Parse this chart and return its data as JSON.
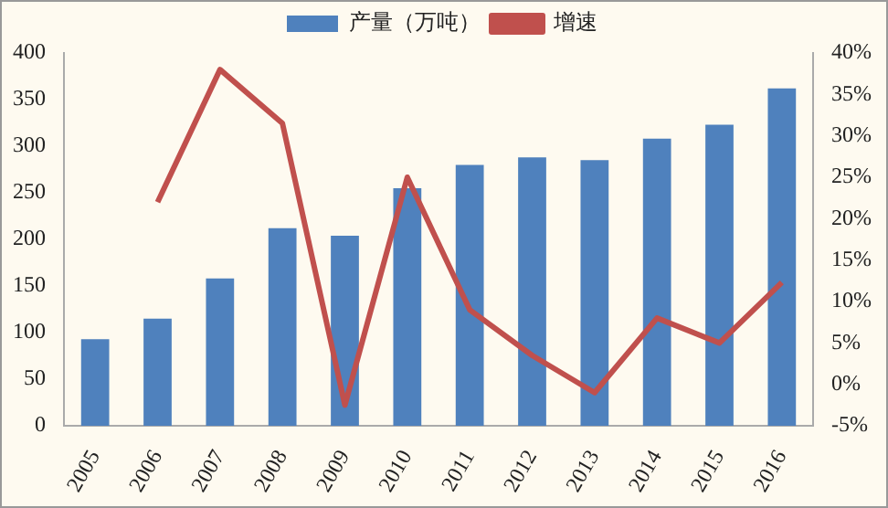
{
  "chart_data": {
    "type": "bar",
    "categories": [
      "2005",
      "2006",
      "2007",
      "2008",
      "2009",
      "2010",
      "2011",
      "2012",
      "2013",
      "2014",
      "2015",
      "2016"
    ],
    "series": [
      {
        "name": "产量（万吨）",
        "color": "#4f81bd",
        "values": [
          93,
          115,
          158,
          212,
          204,
          255,
          280,
          288,
          285,
          308,
          323,
          362
        ]
      },
      {
        "name": "增速",
        "type": "line",
        "axis": "y2",
        "color": "#c0504d",
        "values": [
          null,
          22,
          38,
          31.5,
          -2.5,
          25,
          9,
          3.5,
          -1,
          8,
          5,
          12.3
        ]
      }
    ],
    "ylim": [
      0,
      400
    ],
    "yticks": [
      0,
      50,
      100,
      150,
      200,
      250,
      300,
      350,
      400
    ],
    "y2lim": [
      -5,
      40
    ],
    "y2ticks": [
      {
        "value": -5,
        "label": "-5%"
      },
      {
        "value": 0,
        "label": "0%"
      },
      {
        "value": 5,
        "label": "5%"
      },
      {
        "value": 10,
        "label": "10%"
      },
      {
        "value": 15,
        "label": "15%"
      },
      {
        "value": 20,
        "label": "20%"
      },
      {
        "value": 25,
        "label": "25%"
      },
      {
        "value": 30,
        "label": "30%"
      },
      {
        "value": 35,
        "label": "35%"
      },
      {
        "value": 40,
        "label": "40%"
      }
    ],
    "grid": false,
    "legend": "top",
    "marker": "none"
  }
}
